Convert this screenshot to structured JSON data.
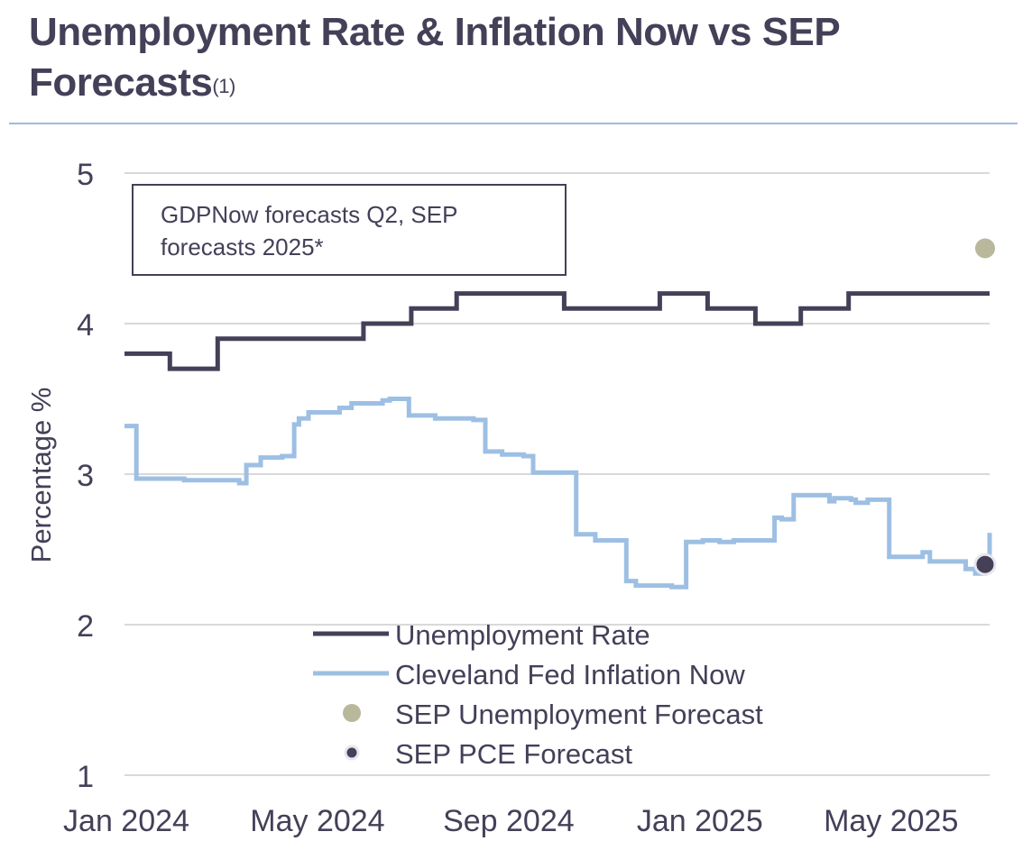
{
  "title": {
    "text": "Unemployment Rate & Inflation Now vs SEP Forecasts",
    "footnote": "(1)"
  },
  "colors": {
    "unemployment": "#434058",
    "inflation": "#9dbfe3",
    "sep_unemployment": "#b9b89c",
    "sep_pce": "#434058",
    "grid": "#d9d9d9",
    "text": "#434058"
  },
  "chart_data": {
    "type": "line",
    "title": "Unemployment Rate & Inflation Now vs SEP Forecasts",
    "xlabel": "",
    "ylabel": "Percentage %",
    "ylim": [
      1,
      5
    ],
    "yticks": [
      1,
      2,
      3,
      4,
      5
    ],
    "xlim": [
      0,
      18.1
    ],
    "xticks": [
      {
        "value": 0,
        "label": "Jan 2024"
      },
      {
        "value": 4,
        "label": "May 2024"
      },
      {
        "value": 8,
        "label": "Sep 2024"
      },
      {
        "value": 12,
        "label": "Jan 2025"
      },
      {
        "value": 16,
        "label": "May 2025"
      }
    ],
    "grid": true,
    "annotation": "GDPNow forecasts Q2, SEP forecasts 2025*",
    "series": [
      {
        "name": "Unemployment Rate",
        "style": "step",
        "x": [
          0,
          0.95,
          1.95,
          5,
          6,
          6.95,
          9.2,
          11.2,
          12.2,
          13.2,
          14.15,
          15.15,
          18.1
        ],
        "values": [
          3.8,
          3.7,
          3.9,
          4.0,
          4.1,
          4.2,
          4.1,
          4.2,
          4.1,
          4.0,
          4.1,
          4.2,
          4.2
        ]
      },
      {
        "name": "Cleveland Fed Inflation Now",
        "style": "step",
        "x": [
          0,
          0.25,
          1.25,
          1.35,
          1.55,
          1.65,
          1.8,
          2.4,
          2.55,
          2.85,
          3.3,
          3.55,
          3.65,
          3.85,
          4.5,
          4.75,
          5.4,
          5.55,
          5.95,
          6.5,
          7.3,
          7.55,
          7.9,
          8.35,
          8.55,
          8.7,
          9.0,
          9.45,
          9.85,
          10.5,
          10.7,
          11.45,
          11.75,
          12.1,
          12.45,
          12.75,
          13.6,
          13.75,
          14.0,
          14.2,
          14.75,
          14.85,
          15.2,
          15.3,
          15.55,
          16.0,
          16.7,
          16.85,
          17.6,
          17.8,
          18.0,
          18.1
        ],
        "values": [
          3.32,
          2.97,
          2.96,
          2.96,
          2.96,
          2.96,
          2.96,
          2.94,
          3.06,
          3.11,
          3.12,
          3.33,
          3.37,
          3.41,
          3.44,
          3.47,
          3.49,
          3.5,
          3.39,
          3.37,
          3.36,
          3.15,
          3.13,
          3.12,
          3.01,
          3.01,
          3.01,
          2.6,
          2.56,
          2.29,
          2.26,
          2.25,
          2.55,
          2.56,
          2.55,
          2.56,
          2.71,
          2.7,
          2.86,
          2.86,
          2.82,
          2.84,
          2.83,
          2.81,
          2.83,
          2.45,
          2.48,
          2.42,
          2.37,
          2.34,
          2.4,
          2.61
        ]
      }
    ],
    "points": [
      {
        "name": "SEP Unemployment Forecast",
        "x": 18.1,
        "value": 4.5
      },
      {
        "name": "SEP PCE Forecast",
        "x": 18.1,
        "value": 2.4
      }
    ],
    "legend": {
      "position": "bottom-center",
      "entries": [
        {
          "name": "Unemployment Rate",
          "kind": "line",
          "color_key": "unemployment"
        },
        {
          "name": "Cleveland Fed Inflation Now",
          "kind": "line",
          "color_key": "inflation"
        },
        {
          "name": "SEP Unemployment Forecast",
          "kind": "dot",
          "color_key": "sep_unemployment"
        },
        {
          "name": "SEP PCE Forecast",
          "kind": "dot",
          "color_key": "sep_pce"
        }
      ]
    }
  }
}
